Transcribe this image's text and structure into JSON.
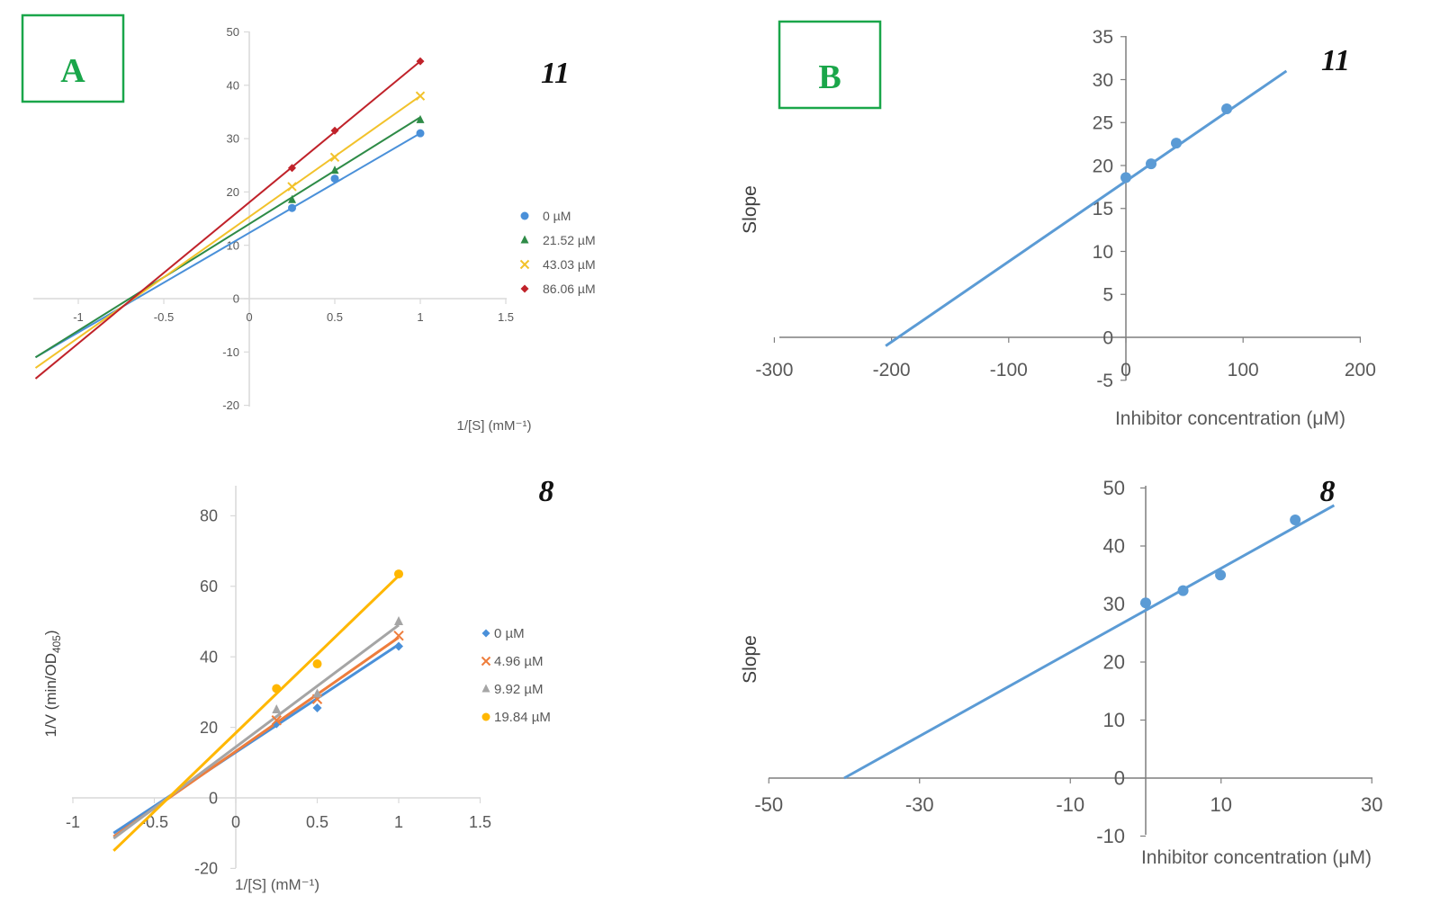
{
  "panels": {
    "A": {
      "label": "A",
      "border_color": "#1aa64a"
    },
    "B": {
      "label": "B",
      "border_color": "#1aa64a"
    }
  },
  "chart_data": [
    {
      "id": "A11",
      "type": "scatter",
      "title": "11",
      "xlabel": "1/[S] (mM⁻¹)",
      "ylabel": "",
      "xlim": [
        -1.25,
        1.5
      ],
      "ylim": [
        -20,
        50
      ],
      "xticks": [
        -1,
        -0.5,
        0,
        0.5,
        1,
        1.5
      ],
      "xtick_labels": [
        "-1",
        "-0.5",
        "0",
        "0.5",
        "1",
        "1.5"
      ],
      "yticks": [
        -20,
        -10,
        0,
        10,
        20,
        30,
        40,
        50
      ],
      "ytick_labels": [
        "-20",
        "-10",
        "0",
        "10",
        "20",
        "30",
        "40",
        "50"
      ],
      "legend": "right",
      "series": [
        {
          "name": "0 µM",
          "color": "#4a90d9",
          "marker": "circle",
          "x": [
            0.25,
            0.5,
            1
          ],
          "y": [
            17,
            22.5,
            31
          ],
          "fit": {
            "x": [
              -1.25,
              1
            ],
            "y": [
              -11,
              31
            ]
          }
        },
        {
          "name": "21.52 µM",
          "color": "#2e8b47",
          "marker": "triangle",
          "x": [
            0.25,
            0.5,
            1
          ],
          "y": [
            18.5,
            24,
            33.5
          ],
          "fit": {
            "x": [
              -1.25,
              1
            ],
            "y": [
              -11,
              34
            ]
          }
        },
        {
          "name": "43.03 µM",
          "color": "#f2c22b",
          "marker": "x",
          "x": [
            0.25,
            0.5,
            1
          ],
          "y": [
            21,
            26.5,
            38
          ],
          "fit": {
            "x": [
              -1.25,
              1
            ],
            "y": [
              -13,
              38
            ]
          }
        },
        {
          "name": "86.06 µM",
          "color": "#c0222a",
          "marker": "diamond",
          "x": [
            0.25,
            0.5,
            1
          ],
          "y": [
            24.5,
            31.5,
            44.5
          ],
          "fit": {
            "x": [
              -1.25,
              1
            ],
            "y": [
              -15,
              44.5
            ]
          }
        }
      ]
    },
    {
      "id": "A8",
      "type": "scatter",
      "title": "8",
      "xlabel": "1/[S] (mM⁻¹)",
      "ylabel": "1/V (min/OD",
      "ylabel_sub": "405",
      "ylabel_end": ")",
      "xlim": [
        -1,
        1.5
      ],
      "ylim": [
        -20,
        90
      ],
      "xticks": [
        -1,
        -0.5,
        0,
        0.5,
        1,
        1.5
      ],
      "xtick_labels": [
        "-1",
        "-0.5",
        "0",
        "0.5",
        "1",
        "1.5"
      ],
      "yticks": [
        -20,
        0,
        20,
        40,
        60,
        80
      ],
      "ytick_labels": [
        "-20",
        "0",
        "20",
        "40",
        "60",
        "80"
      ],
      "legend": "right",
      "series": [
        {
          "name": "0 µM",
          "color": "#4a90d9",
          "marker": "diamond",
          "x": [
            0.25,
            0.5,
            1
          ],
          "y": [
            21,
            25.5,
            43
          ],
          "fit": {
            "x": [
              -0.75,
              1
            ],
            "y": [
              -10,
              43.5
            ]
          }
        },
        {
          "name": "4.96 µM",
          "color": "#ee7d3c",
          "marker": "x",
          "x": [
            0.25,
            0.5,
            1
          ],
          "y": [
            22,
            28,
            46
          ],
          "fit": {
            "x": [
              -0.75,
              1
            ],
            "y": [
              -11,
              45.5
            ]
          }
        },
        {
          "name": "9.92 µM",
          "color": "#a5a5a5",
          "marker": "triangle",
          "x": [
            0.25,
            0.5,
            1
          ],
          "y": [
            25,
            29.5,
            50
          ],
          "fit": {
            "x": [
              -0.75,
              1
            ],
            "y": [
              -11.5,
              49
            ]
          }
        },
        {
          "name": "19.84 µM",
          "color": "#ffb700",
          "marker": "circle",
          "x": [
            0.25,
            0.5,
            1
          ],
          "y": [
            31,
            38,
            63.5
          ],
          "fit": {
            "x": [
              -0.75,
              1
            ],
            "y": [
              -15,
              63
            ]
          }
        }
      ]
    },
    {
      "id": "B11",
      "type": "scatter",
      "title": "11",
      "xlabel": "Inhibitor concentration (μM)",
      "ylabel": "Slope",
      "xlim": [
        -300,
        200
      ],
      "ylim": [
        -5,
        35
      ],
      "xticks": [
        -300,
        -200,
        -100,
        0,
        100,
        200
      ],
      "xtick_labels": [
        "-300",
        "-200",
        "-100",
        "0",
        "100",
        "200"
      ],
      "yticks": [
        -5,
        0,
        5,
        10,
        15,
        20,
        25,
        30,
        35
      ],
      "ytick_labels": [
        "-5",
        "0",
        "5",
        "10",
        "15",
        "20",
        "25",
        "30",
        "35"
      ],
      "series": [
        {
          "name": "slope",
          "color": "#5b9bd5",
          "marker": "circle",
          "x": [
            0,
            21.52,
            43.03,
            86.06
          ],
          "y": [
            18.6,
            20.2,
            22.6,
            26.6
          ],
          "fit": {
            "x": [
              -205,
              137
            ],
            "y": [
              -1,
              31
            ]
          }
        }
      ]
    },
    {
      "id": "B8",
      "type": "scatter",
      "title": "8",
      "xlabel": "Inhibitor concentration (μM)",
      "ylabel": "Slope",
      "xlim": [
        -50,
        30
      ],
      "ylim": [
        -10,
        50
      ],
      "xticks": [
        -50,
        -30,
        -10,
        10,
        30
      ],
      "xtick_labels": [
        "-50",
        "-30",
        "-10",
        "10",
        "30"
      ],
      "yticks": [
        -10,
        0,
        10,
        20,
        30,
        40,
        50
      ],
      "ytick_labels": [
        "-10",
        "0",
        "10",
        "20",
        "30",
        "40",
        "50"
      ],
      "series": [
        {
          "name": "slope",
          "color": "#5b9bd5",
          "marker": "circle",
          "x": [
            0,
            4.96,
            9.92,
            19.84
          ],
          "y": [
            30.2,
            32.3,
            35,
            44.5
          ],
          "fit": {
            "x": [
              -40,
              25
            ],
            "y": [
              0,
              47
            ]
          }
        }
      ]
    }
  ]
}
